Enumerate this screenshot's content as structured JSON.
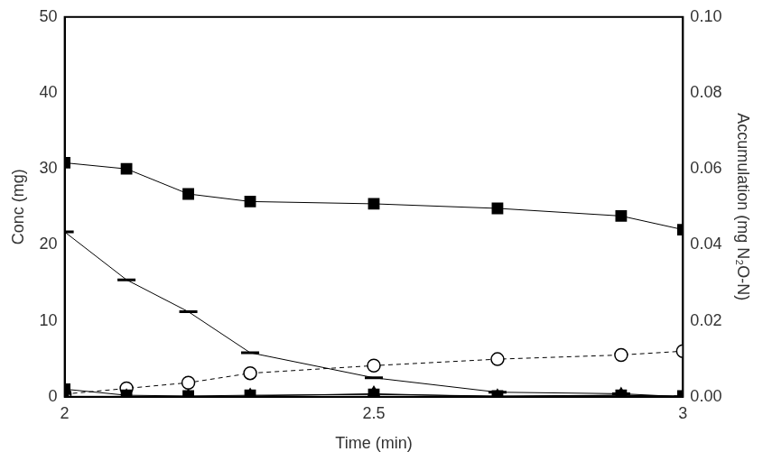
{
  "chart_data": {
    "type": "line",
    "x_label": "Time (min)",
    "y_label": "Conc (mg)",
    "y2_label": "Accumulation (mg N₂O-N)",
    "xlim": [
      2,
      3
    ],
    "xticks": [
      2,
      2.5,
      3
    ],
    "ylim": [
      0,
      50
    ],
    "yticks": [
      0,
      10,
      20,
      30,
      40,
      50
    ],
    "y2lim": [
      0,
      0.1
    ],
    "y2ticks": [
      {
        "value": 0,
        "label": "0.00"
      },
      {
        "value": 0.02,
        "label": "0.02"
      },
      {
        "value": 0.04,
        "label": "0.04"
      },
      {
        "value": 0.06,
        "label": "0.06"
      },
      {
        "value": 0.08,
        "label": "0.08"
      },
      {
        "value": 0.1,
        "label": "0.10"
      }
    ],
    "grid": false,
    "x": [
      2,
      2.1,
      2.2,
      2.3,
      2.5,
      2.7,
      2.9,
      3
    ],
    "series": [
      {
        "color": "#000000",
        "marker": "square",
        "line_style": "solid",
        "values": [
          30.8,
          30.0,
          26.7,
          25.7,
          25.4,
          24.8,
          23.8,
          22.0
        ]
      },
      {
        "color": "#000000",
        "marker": "dash",
        "line_style": "solid",
        "values": [
          21.7,
          15.4,
          11.2,
          5.8,
          2.5,
          0.6,
          0.4,
          0
        ]
      },
      {
        "color": "#000000",
        "marker": "square",
        "line_style": "solid",
        "values": [
          1.0,
          0.2,
          0.1,
          0.2,
          0.3,
          0.1,
          0.2,
          0.1
        ]
      },
      {
        "color": "#000000",
        "marker": "triangle",
        "line_style": "solid",
        "values": [
          0,
          0,
          0,
          0.1,
          0.4,
          0,
          0.2,
          0
        ]
      },
      {
        "color": "#000000",
        "marker": "open_circle",
        "line_style": "dashed",
        "axis": "y2",
        "values": [
          0.0007,
          0.0022,
          0.0037,
          0.0062,
          0.0082,
          0.0099,
          0.011,
          0.012
        ]
      }
    ]
  }
}
